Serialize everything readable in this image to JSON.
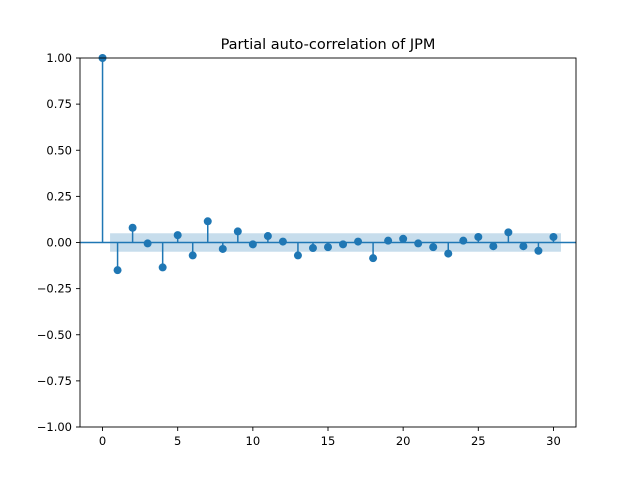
{
  "chart_data": {
    "type": "stem",
    "title": "Partial auto-correlation of JPM",
    "xlabel": "",
    "ylabel": "",
    "xlim": [
      -1.5,
      31.5
    ],
    "ylim": [
      -1.0,
      1.0
    ],
    "xticks": [
      0,
      5,
      10,
      15,
      20,
      25,
      30
    ],
    "xtick_labels": [
      "0",
      "5",
      "10",
      "15",
      "20",
      "25",
      "30"
    ],
    "yticks": [
      -1.0,
      -0.75,
      -0.5,
      -0.25,
      0.0,
      0.25,
      0.5,
      0.75,
      1.0
    ],
    "ytick_labels": [
      "−1.00",
      "−0.75",
      "−0.50",
      "−0.25",
      "0.00",
      "0.25",
      "0.50",
      "0.75",
      "1.00"
    ],
    "lags": [
      0,
      1,
      2,
      3,
      4,
      5,
      6,
      7,
      8,
      9,
      10,
      11,
      12,
      13,
      14,
      15,
      16,
      17,
      18,
      19,
      20,
      21,
      22,
      23,
      24,
      25,
      26,
      27,
      28,
      29,
      30
    ],
    "values": [
      1.0,
      -0.15,
      0.08,
      -0.005,
      -0.135,
      0.04,
      -0.07,
      0.115,
      -0.035,
      0.06,
      -0.01,
      0.035,
      0.005,
      -0.07,
      -0.03,
      -0.025,
      -0.01,
      0.005,
      -0.085,
      0.01,
      0.02,
      -0.005,
      -0.025,
      -0.06,
      0.01,
      0.03,
      -0.02,
      0.055,
      -0.02,
      -0.045,
      0.03
    ],
    "confidence_band": {
      "x_range": [
        0.5,
        30.5
      ],
      "lower": -0.05,
      "upper": 0.05
    },
    "grid": false,
    "colors": {
      "stem": "#1f77b4",
      "band": "#1f77b4",
      "zero_line": "#1f77b4"
    }
  }
}
